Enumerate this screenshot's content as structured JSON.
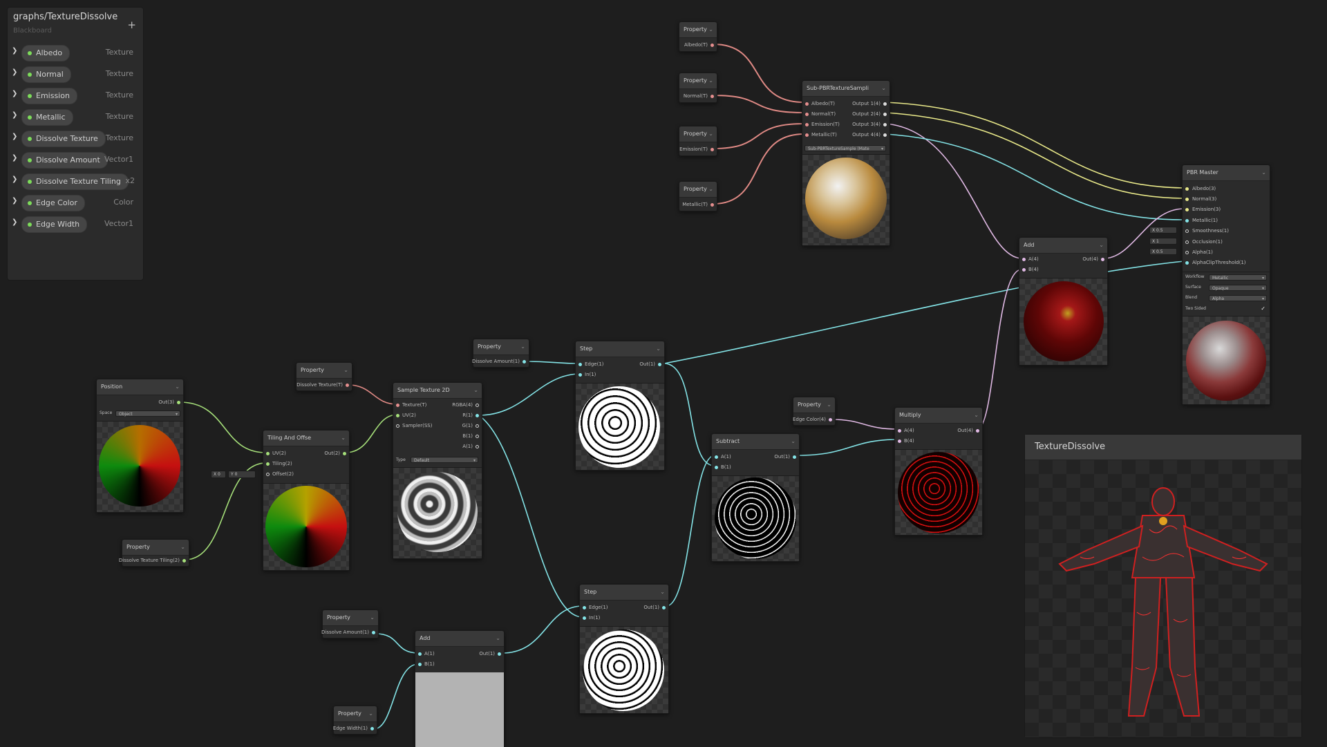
{
  "colors": {
    "background": "#1e1e1e",
    "wire_texture": "#e08a85",
    "wire_vector4": "#e0b9e4",
    "wire_vector3": "#eaea8a",
    "wire_vector2": "#a6e07a",
    "wire_vector1": "#84e4e7"
  },
  "blackboard": {
    "title": "graphs/TextureDissolve",
    "subtitle": "Blackboard",
    "add_label": "+",
    "properties": [
      {
        "name": "Albedo",
        "type": "Texture"
      },
      {
        "name": "Normal",
        "type": "Texture"
      },
      {
        "name": "Emission",
        "type": "Texture"
      },
      {
        "name": "Metallic",
        "type": "Texture"
      },
      {
        "name": "Dissolve Texture",
        "type": "Texture"
      },
      {
        "name": "Dissolve Amount",
        "type": "Vector1"
      },
      {
        "name": "Dissolve Texture Tiling",
        "type": "x2"
      },
      {
        "name": "Edge Color",
        "type": "Color"
      },
      {
        "name": "Edge Width",
        "type": "Vector1"
      }
    ]
  },
  "nodes": {
    "prop_albedo": {
      "title": "Property",
      "port": "Albedo(T)"
    },
    "prop_normal": {
      "title": "Property",
      "port": "Normal(T)"
    },
    "prop_emission": {
      "title": "Property",
      "port": "Emission(T)"
    },
    "prop_metallic": {
      "title": "Property",
      "port": "Metallic(T)"
    },
    "sub_pbr": {
      "title": "Sub-PBRTextureSampli",
      "inputs": [
        "Albedo(T)",
        "Normal(T)",
        "Emission(T)",
        "Metallic(T)"
      ],
      "outputs": [
        "Output 1(4)",
        "Output 2(4)",
        "Output 3(4)",
        "Output 4(4)"
      ],
      "asset": "Sub-PBRTextureSample (Mate"
    },
    "pbr_master": {
      "title": "PBR Master",
      "inputs": [
        "Albedo(3)",
        "Normal(3)",
        "Emission(3)",
        "Metallic(1)",
        "Smoothness(1)",
        "Occlusion(1)",
        "Alpha(1)",
        "AlphaClipThreshold(1)"
      ],
      "fields": [
        "X 0.5",
        "X 1",
        "X 0.5"
      ],
      "settings": [
        {
          "label": "Workflow",
          "value": "Metallic"
        },
        {
          "label": "Surface",
          "value": "Opaque"
        },
        {
          "label": "Blend",
          "value": "Alpha"
        }
      ],
      "two_sided_label": "Two Sided",
      "two_sided_check": "✓"
    },
    "add_top": {
      "title": "Add",
      "inputs": [
        "A(4)",
        "B(4)"
      ],
      "output": "Out(4)"
    },
    "position": {
      "title": "Position",
      "output": "Out(3)",
      "space_label": "Space",
      "space_value": "Object"
    },
    "prop_tiling": {
      "title": "Property",
      "port": "Dissolve Texture Tiling(2)"
    },
    "tiling_offset": {
      "title": "Tiling And Offse",
      "inputs": [
        "UV(2)",
        "Tiling(2)",
        "Offset(2)"
      ],
      "output": "Out(2)",
      "offset_x": "X 0",
      "offset_y": "Y 0"
    },
    "prop_dissolve_tex": {
      "title": "Property",
      "port": "Dissolve Texture(T)"
    },
    "sample_tex": {
      "title": "Sample Texture 2D",
      "inputs": [
        "Texture(T)",
        "UV(2)",
        "Sampler(SS)"
      ],
      "outputs": [
        "RGBA(4)",
        "R(1)",
        "G(1)",
        "B(1)",
        "A(1)"
      ],
      "type_label": "Type",
      "type_value": "Default"
    },
    "prop_dissolve_amount_top": {
      "title": "Property",
      "port": "Dissolve Amount(1)"
    },
    "step_top": {
      "title": "Step",
      "inputs": [
        "Edge(1)",
        "In(1)"
      ],
      "output": "Out(1)"
    },
    "subtract": {
      "title": "Subtract",
      "inputs": [
        "A(1)",
        "B(1)"
      ],
      "output": "Out(1)"
    },
    "prop_edge_color": {
      "title": "Property",
      "port": "Edge Color(4)"
    },
    "multiply": {
      "title": "Multiply",
      "inputs": [
        "A(4)",
        "B(4)"
      ],
      "output": "Out(4)"
    },
    "step_bottom": {
      "title": "Step",
      "inputs": [
        "Edge(1)",
        "In(1)"
      ],
      "output": "Out(1)"
    },
    "prop_dissolve_amount_bottom": {
      "title": "Property",
      "port": "Dissolve Amount(1)"
    },
    "add_bottom": {
      "title": "Add",
      "inputs": [
        "A(1)",
        "B(1)"
      ],
      "output": "Out(1)"
    },
    "prop_edge_width": {
      "title": "Property",
      "port": "Edge Width(1)"
    }
  },
  "main_preview": {
    "title": "TextureDissolve"
  }
}
